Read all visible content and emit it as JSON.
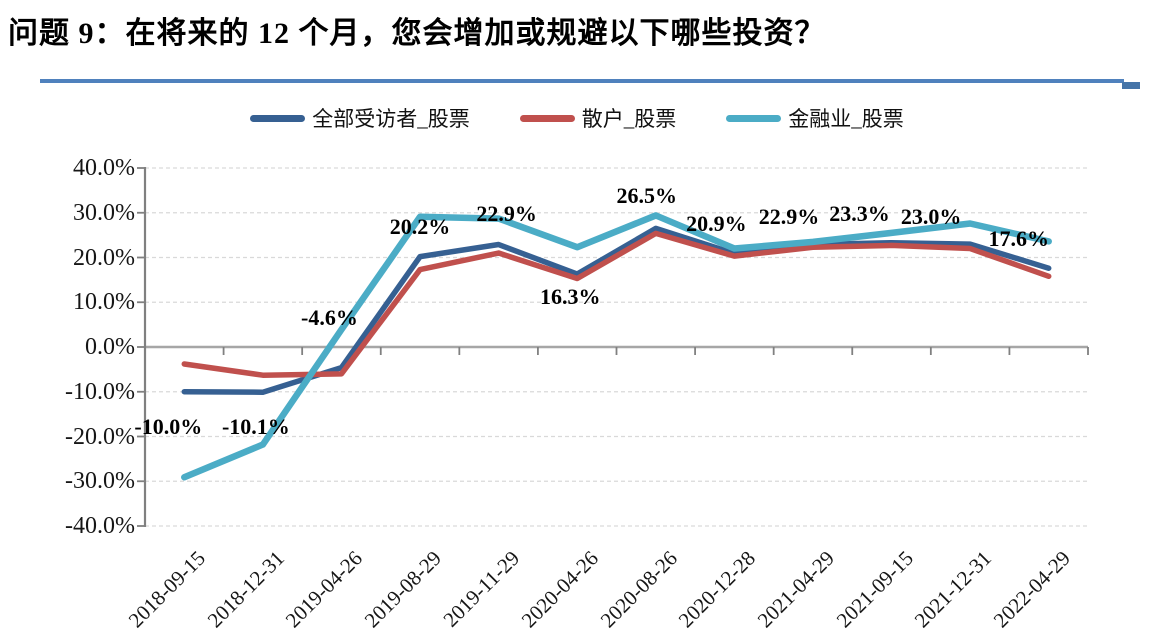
{
  "title": "问题 9：在将来的 12 个月，您会增加或规避以下哪些投资？",
  "accent_colors": {
    "separator_line": "#4F81BD",
    "separator_endcap": "#4574A8",
    "gridline": "#D9D9D9",
    "zero_axis": "#A6A6A6",
    "axis": "#808080"
  },
  "chart_data": {
    "type": "line",
    "title": "",
    "xlabel": "",
    "ylabel": "",
    "ylim": [
      -40,
      40
    ],
    "grid": "horizontal-dashed",
    "legend_position": "top-center",
    "categories": [
      "2018-09-15",
      "2018-12-31",
      "2019-04-26",
      "2019-08-29",
      "2019-11-29",
      "2020-04-26",
      "2020-08-26",
      "2020-12-28",
      "2021-04-29",
      "2021-09-15",
      "2021-12-31",
      "2022-04-29"
    ],
    "series": [
      {
        "name": "全部受访者_股票",
        "color": "#366092",
        "values": [
          -10.0,
          -10.1,
          -4.6,
          20.2,
          22.9,
          16.3,
          26.5,
          20.9,
          22.9,
          23.3,
          23.0,
          17.6
        ]
      },
      {
        "name": "散户_股票",
        "color": "#C0504D",
        "values": [
          -3.8,
          -6.3,
          -6.0,
          17.3,
          21.0,
          15.3,
          25.4,
          20.3,
          22.3,
          22.7,
          22.0,
          15.8
        ]
      },
      {
        "name": "金融业_股票",
        "color": "#4BACC6",
        "values": [
          -29.1,
          -21.8,
          3.9,
          29.1,
          28.7,
          22.3,
          29.4,
          22.0,
          23.5,
          25.5,
          27.6,
          23.6
        ]
      }
    ],
    "data_labels_series": "全部受访者_股票",
    "data_labels": [
      "-10.0%",
      "-10.1%",
      "-4.6%",
      "20.2%",
      "22.9%",
      "16.3%",
      "26.5%",
      "20.9%",
      "22.9%",
      "23.3%",
      "23.0%",
      "17.6%"
    ],
    "y_ticks": [
      "40.0%",
      "30.0%",
      "20.0%",
      "10.0%",
      "0.0%",
      "-10.0%",
      "-20.0%",
      "-30.0%",
      "-40.0%"
    ]
  }
}
